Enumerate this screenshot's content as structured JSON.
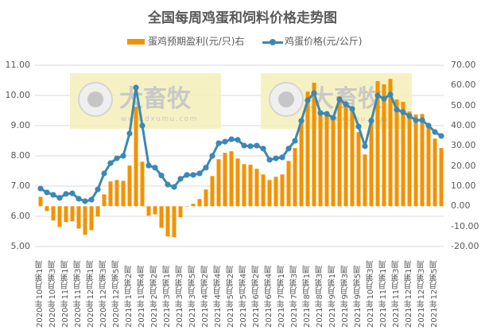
{
  "chart_data": {
    "type": "bar+line",
    "title": "全国每周鸡蛋和饲料价格走势图",
    "legend": [
      "蛋鸡预期盈利(元/只)右",
      "鸡蛋价格(元/公斤)"
    ],
    "legend_position": "top",
    "grid": true,
    "colors": {
      "bar": "#F39200",
      "line": "#3C88B4",
      "watermark_bg": "#F5EFB8"
    },
    "left_axis": {
      "label": "鸡蛋价格(元/公斤)",
      "ylim": [
        5.0,
        11.0
      ],
      "ticks": [
        "5.00",
        "6.00",
        "7.00",
        "8.00",
        "9.00",
        "10.00",
        "11.00"
      ]
    },
    "right_axis": {
      "label": "蛋鸡预期盈利(元/只)",
      "ylim": [
        -20.0,
        70.0
      ],
      "ticks": [
        "-20.00",
        "-10.00",
        "0.00",
        "10.00",
        "20.00",
        "30.00",
        "40.00",
        "50.00",
        "60.00",
        "70.00"
      ]
    },
    "x_tick_labels": [
      "2020年10月第1周",
      "2020年10月第3周",
      "2020年11月第1周",
      "2020年11月第3周",
      "2020年12月第1周",
      "2020年12月第3周",
      "2020年12月第5周",
      "2021年1月第2周",
      "2021年1月第4周",
      "2021年2月第2周",
      "2021年3月第1周",
      "2021年3月第3周",
      "2021年3月第5周",
      "2021年4月第2周",
      "2021年4月第4周",
      "2021年5月第2周",
      "2021年5月第4周",
      "2021年6月第2周",
      "2021年6月第4周",
      "2021年7月第1周",
      "2021年7月第3周",
      "2021年8月第1周",
      "2021年8月第1周",
      "2021年8月第3周",
      "2021年9月第1周",
      "2021年9月第3周",
      "2021年9月第5周",
      "2021年10月第3周",
      "2021年11月第1周",
      "2021年11月第3周",
      "2021年12月第1周",
      "2021年12月第3周",
      "2021年12月第5周"
    ],
    "series": [
      {
        "name": "蛋鸡预期盈利(元/只)右",
        "type": "bar",
        "axis": "right",
        "values": [
          4.7,
          -2.4,
          -7.1,
          -10.3,
          -7.9,
          -7.5,
          -11.1,
          -14.2,
          -11.9,
          -5.1,
          5.9,
          12.3,
          13.0,
          12.6,
          20.2,
          49.4,
          22.1,
          -4.7,
          -4.0,
          -10.7,
          -15.0,
          -15.4,
          -5.5,
          0.0,
          1.2,
          3.6,
          8.3,
          15.0,
          23.3,
          26.5,
          27.3,
          23.7,
          20.9,
          20.6,
          18.6,
          15.8,
          13.0,
          14.6,
          15.8,
          22.5,
          28.9,
          41.5,
          56.9,
          61.3,
          45.1,
          45.1,
          44.3,
          54.5,
          49.8,
          47.0,
          36.8,
          25.7,
          43.9,
          62.1,
          60.5,
          63.2,
          53.0,
          51.8,
          47.0,
          45.5,
          45.8,
          41.1,
          33.6,
          28.9
        ]
      },
      {
        "name": "鸡蛋价格(元/公斤)",
        "type": "line",
        "axis": "left",
        "values": [
          6.92,
          6.79,
          6.71,
          6.61,
          6.74,
          6.76,
          6.58,
          6.5,
          6.55,
          6.89,
          7.42,
          7.76,
          7.92,
          8.0,
          8.74,
          10.26,
          9.0,
          7.68,
          7.61,
          7.35,
          7.05,
          6.97,
          7.24,
          7.37,
          7.37,
          7.42,
          7.61,
          8.0,
          8.42,
          8.47,
          8.55,
          8.53,
          8.34,
          8.32,
          8.34,
          8.24,
          7.87,
          7.92,
          7.95,
          8.24,
          8.5,
          9.16,
          9.84,
          10.08,
          9.42,
          9.39,
          9.26,
          9.87,
          9.71,
          9.55,
          8.97,
          8.32,
          9.16,
          10.0,
          9.89,
          10.03,
          9.53,
          9.45,
          9.32,
          9.18,
          9.18,
          9.0,
          8.79,
          8.66
        ]
      }
    ]
  },
  "title": "全国每周鸡蛋和饲料价格走势图",
  "legend": {
    "bar_label": "蛋鸡预期盈利(元/只)右",
    "line_label": "鸡蛋价格(元/公斤)"
  },
  "axes": {
    "left": [
      "11.00",
      "10.00",
      "9.00",
      "8.00",
      "7.00",
      "6.00",
      "5.00"
    ],
    "right": [
      "70.00",
      "60.00",
      "50.00",
      "40.00",
      "30.00",
      "20.00",
      "10.00",
      "0.00",
      "-10.00",
      "-20.00"
    ]
  },
  "watermark": {
    "brand": "大畜牧",
    "url": "www.dxumu.com"
  }
}
